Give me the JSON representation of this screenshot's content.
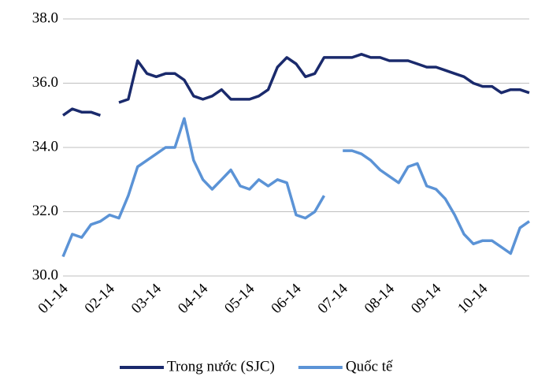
{
  "chart_data": {
    "type": "line",
    "categories": [
      "01-14",
      null,
      null,
      null,
      null,
      "02-14",
      null,
      null,
      null,
      null,
      "03-14",
      null,
      null,
      null,
      null,
      "04-14",
      null,
      null,
      null,
      null,
      "05-14",
      null,
      null,
      null,
      null,
      "06-14",
      null,
      null,
      null,
      null,
      "07-14",
      null,
      null,
      null,
      null,
      "08-14",
      null,
      null,
      null,
      null,
      "09-14",
      null,
      null,
      null,
      null,
      "10-14",
      null,
      null,
      null,
      null,
      null
    ],
    "series": [
      {
        "name": "Trong nước (SJC)",
        "color": "#1a2a6c",
        "values": [
          35.0,
          35.2,
          35.1,
          35.1,
          35.0,
          null,
          35.4,
          35.5,
          36.7,
          36.3,
          36.2,
          36.3,
          36.3,
          36.1,
          35.6,
          35.5,
          35.6,
          35.8,
          35.5,
          35.5,
          35.5,
          35.6,
          35.8,
          36.5,
          36.8,
          36.6,
          36.2,
          36.3,
          36.8,
          36.8,
          36.8,
          36.8,
          36.9,
          36.8,
          36.8,
          36.7,
          36.7,
          36.7,
          36.6,
          36.5,
          36.5,
          36.4,
          36.3,
          36.2,
          36.0,
          35.9,
          35.9,
          35.7,
          35.8,
          35.8,
          35.7
        ]
      },
      {
        "name": "Quốc tế",
        "color": "#5b93d6",
        "values": [
          30.6,
          31.3,
          31.2,
          31.6,
          31.7,
          31.9,
          31.8,
          32.5,
          33.4,
          33.6,
          33.8,
          34.0,
          34.0,
          34.9,
          33.6,
          33.0,
          32.7,
          33.0,
          33.3,
          32.8,
          32.7,
          33.0,
          32.8,
          33.0,
          32.9,
          31.9,
          31.8,
          32.0,
          32.5,
          null,
          33.9,
          33.9,
          33.8,
          33.6,
          33.3,
          33.1,
          32.9,
          33.4,
          33.5,
          32.8,
          32.7,
          32.4,
          31.9,
          31.3,
          31.0,
          31.1,
          31.1,
          30.9,
          30.7,
          31.5,
          31.7
        ]
      }
    ],
    "ylim": [
      30,
      38
    ],
    "yticks": [
      {
        "value": 30,
        "label": "30.0"
      },
      {
        "value": 32,
        "label": "32.0"
      },
      {
        "value": 34,
        "label": "34.0"
      },
      {
        "value": 36,
        "label": "36.0"
      },
      {
        "value": 38,
        "label": "38.0"
      }
    ],
    "grid": true,
    "legend": "bottom"
  }
}
